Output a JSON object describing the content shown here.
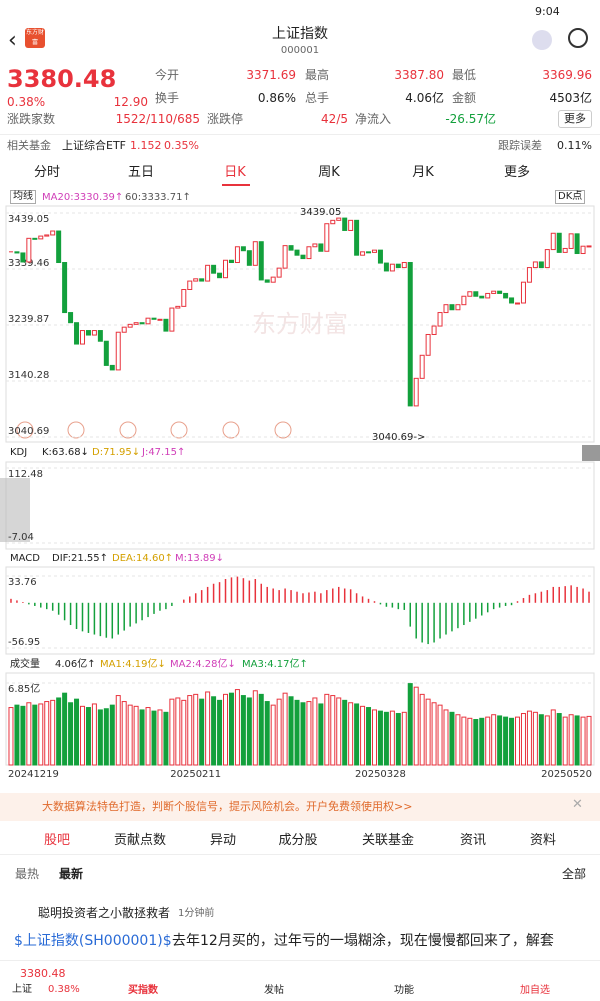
{
  "status": {
    "time": "9:04"
  },
  "header": {
    "title": "上证指数",
    "code": "000001",
    "logo": "东方财富"
  },
  "quote": {
    "price": "3380.48",
    "pct": "0.38%",
    "change": "12.90",
    "fields": [
      {
        "label": "今开",
        "value": "3371.69"
      },
      {
        "label": "最高",
        "value": "3387.80"
      },
      {
        "label": "最低",
        "value": "3369.96"
      },
      {
        "label": "换手",
        "value": "0.86%"
      },
      {
        "label": "总手",
        "value": "4.06亿"
      },
      {
        "label": "金额",
        "value": "4503亿"
      },
      {
        "label": "涨跌家数",
        "value": "1522/110/685"
      },
      {
        "label": "涨跌停",
        "value": "42/5"
      },
      {
        "label": "净流入",
        "value": "-26.57亿"
      }
    ],
    "more": "更多"
  },
  "fund": {
    "label": "相关基金",
    "name": "上证综合ETF",
    "price": "1.152",
    "pct": "0.35%",
    "track_label": "跟踪误差",
    "track": "0.11%"
  },
  "tabs": [
    "分时",
    "五日",
    "日K",
    "周K",
    "月K",
    "更多"
  ],
  "chart_data": {
    "type": "candlestick",
    "ma_label": "均线",
    "ma20": "MA20:3330.39↑",
    "ma60": "60:3333.71↑",
    "dk": "DK点",
    "high_note": "3439.05",
    "low_note": "3040.69->",
    "up_color": "#e8323c",
    "down_color": "#13a03c",
    "grid": true,
    "categories": [
      "20241219",
      null,
      null,
      null,
      null,
      null,
      null,
      null,
      null,
      null,
      null,
      null,
      null,
      null,
      null,
      null,
      null,
      null,
      null,
      null,
      null,
      null,
      null,
      null,
      null,
      null,
      null,
      null,
      null,
      null,
      null,
      "20250211",
      null,
      null,
      null,
      null,
      null,
      null,
      null,
      null,
      null,
      null,
      null,
      null,
      null,
      null,
      null,
      null,
      null,
      null,
      null,
      null,
      null,
      null,
      null,
      null,
      null,
      null,
      null,
      null,
      null,
      null,
      "20250328",
      null,
      null,
      null,
      null,
      null,
      null,
      null,
      null,
      null,
      null,
      null,
      null,
      null,
      null,
      null,
      null,
      null,
      null,
      null,
      null,
      null,
      null,
      null,
      null,
      null,
      null,
      null,
      null,
      null,
      null,
      null,
      null,
      null,
      null,
      "20250520"
    ],
    "close": [
      3370,
      3368,
      3352,
      3394,
      3393,
      3398,
      3400,
      3407,
      3351,
      3262,
      3244,
      3206,
      3230,
      3222,
      3230,
      3211,
      3168,
      3160,
      3227,
      3236,
      3241,
      3244,
      3242,
      3252,
      3250,
      3250,
      3229,
      3270,
      3273,
      3303,
      3318,
      3322,
      3318,
      3346,
      3332,
      3324,
      3355,
      3351,
      3379,
      3372,
      3346,
      3388,
      3320,
      3316,
      3325,
      3341,
      3381,
      3373,
      3364,
      3358,
      3379,
      3384,
      3371,
      3420,
      3426,
      3430,
      3408,
      3426,
      3364,
      3370,
      3369,
      3373,
      3350,
      3336,
      3348,
      3342,
      3351,
      3096,
      3145,
      3186,
      3223,
      3238,
      3262,
      3276,
      3267,
      3276,
      3291,
      3299,
      3291,
      3288,
      3296,
      3300,
      3296,
      3288,
      3279,
      3279,
      3316,
      3342,
      3352,
      3342,
      3374,
      3403,
      3369,
      3376,
      3402,
      3367,
      3380,
      3380.48
    ],
    "ylim": [
      3040.69,
      3439.05
    ],
    "yticks": [
      3439.05,
      3339.46,
      3239.87,
      3140.28,
      3040.69
    ],
    "kdj": {
      "name": "KDJ",
      "k": "K:63.68↓",
      "d": "D:71.95↓",
      "j": "J:47.15↑",
      "ylim": [
        -7.04,
        112.48
      ],
      "yticks": [
        112.48,
        -7.04
      ]
    },
    "macd": {
      "name": "MACD",
      "dif": "DIF:21.55↑",
      "dea": "DEA:14.60↑",
      "m": "M:13.89↓",
      "values": [
        5,
        3,
        1,
        -2,
        -4,
        -6,
        -8,
        -10,
        -15,
        -22,
        -28,
        -33,
        -36,
        -38,
        -40,
        -42,
        -44,
        -45,
        -40,
        -35,
        -30,
        -26,
        -22,
        -18,
        -14,
        -10,
        -8,
        -4,
        0,
        4,
        8,
        12,
        16,
        20,
        24,
        26,
        30,
        32,
        33,
        31,
        28,
        30,
        24,
        20,
        18,
        16,
        18,
        16,
        14,
        12,
        13,
        14,
        12,
        16,
        18,
        20,
        18,
        17,
        12,
        8,
        5,
        2,
        -2,
        -5,
        -6,
        -8,
        -9,
        -30,
        -45,
        -50,
        -52,
        -50,
        -45,
        -40,
        -36,
        -32,
        -28,
        -24,
        -20,
        -16,
        -12,
        -8,
        -6,
        -4,
        -3,
        2,
        6,
        10,
        12,
        14,
        16,
        20,
        20,
        21,
        22,
        20,
        18,
        14
      ],
      "ylim": [
        -56.95,
        33.76
      ],
      "yticks": [
        33.76,
        -56.95
      ]
    },
    "volume": {
      "name": "成交量",
      "cur": "4.06亿↑",
      "ma1": "MA1:4.19亿↓",
      "ma2": "MA2:4.28亿↓",
      "ma3": "MA3:4.17亿↑",
      "values": [
        4.8,
        5.0,
        4.9,
        5.2,
        5.0,
        5.1,
        5.3,
        5.4,
        5.6,
        6.0,
        5.2,
        5.5,
        4.9,
        4.8,
        5.1,
        4.6,
        4.7,
        5.0,
        5.8,
        5.3,
        5.0,
        4.9,
        4.6,
        4.8,
        4.5,
        4.6,
        4.4,
        5.5,
        5.6,
        5.4,
        5.8,
        5.9,
        5.5,
        6.1,
        5.7,
        5.4,
        5.9,
        6.0,
        6.3,
        5.8,
        5.6,
        6.2,
        5.9,
        5.3,
        5.0,
        5.5,
        6.0,
        5.7,
        5.4,
        5.2,
        5.3,
        5.6,
        5.1,
        5.9,
        5.8,
        5.6,
        5.4,
        5.2,
        5.1,
        4.9,
        4.8,
        4.6,
        4.5,
        4.4,
        4.5,
        4.3,
        4.4,
        6.8,
        6.5,
        5.9,
        5.5,
        5.2,
        5.0,
        4.6,
        4.4,
        4.2,
        4.0,
        3.9,
        3.8,
        3.9,
        4.0,
        4.2,
        4.1,
        4.0,
        3.9,
        4.0,
        4.3,
        4.5,
        4.4,
        4.2,
        4.1,
        4.6,
        4.3,
        4.0,
        4.2,
        4.1,
        4.0,
        4.06
      ],
      "ylim": [
        0,
        6.85
      ],
      "yticks": [
        {
          "value": 6.85,
          "label": "6.85亿"
        }
      ]
    }
  },
  "banner": "大数据算法特色打造，判断个股信号，提示风险机会。开户免费领使用权>>",
  "tabs2": [
    "股吧",
    "贡献点数",
    "异动",
    "成分股",
    "关联基金",
    "资讯",
    "资料"
  ],
  "filters": {
    "hot": "最热",
    "new": "最新",
    "all": "全部"
  },
  "post": {
    "user": "聪明投资者之小散拯救者",
    "time": "1分钟前",
    "tag": "$上证指数(SH000001)$",
    "text": "去年12月买的，过年亏的一塌糊涂，现在慢慢都回来了，解套"
  },
  "bottom": {
    "price": "3380.48",
    "name": "上证",
    "pct": "0.38%",
    "buy": "买指数",
    "post": "发帖",
    "func": "功能",
    "fav": "加自选"
  }
}
